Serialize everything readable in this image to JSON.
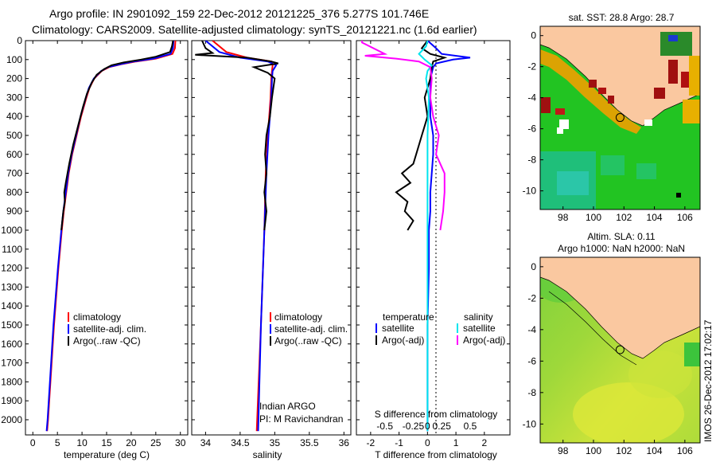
{
  "header": {
    "line1": "Argo profile: IN 2901092_159 22-Dec-2012 20121225_376 5.277S 101.746E",
    "line2": "Climatology: CARS2009. Satellite-adjusted climatology: synTS_20121221.nc (1.6d earlier)"
  },
  "chart_data": [
    {
      "type": "line",
      "name": "temperature",
      "xlabel": "temperature (deg C)",
      "xlim": [
        -1.5,
        31.5
      ],
      "xticks": [
        0,
        5,
        10,
        15,
        20,
        25,
        30
      ],
      "ylim": [
        0,
        2080
      ],
      "yticks": [
        0,
        100,
        200,
        300,
        400,
        500,
        600,
        700,
        800,
        900,
        1000,
        1100,
        1200,
        1300,
        1400,
        1500,
        1600,
        1700,
        1800,
        1900,
        2000
      ],
      "legend": [
        "climatology",
        "satellite-adj. clim.",
        "Argo(..raw -QC)"
      ],
      "series": [
        {
          "name": "climatology",
          "color": "#ff0000",
          "depth": [
            0,
            40,
            70,
            95,
            110,
            125,
            140,
            160,
            200,
            250,
            300,
            400,
            500,
            600,
            700,
            800,
            900,
            1000,
            1200,
            1500,
            2000,
            2060
          ],
          "values": [
            29,
            28.9,
            28.4,
            25,
            21,
            18,
            15.5,
            14,
            12.5,
            11.5,
            10.9,
            9.8,
            8.9,
            8,
            7.3,
            6.8,
            6.3,
            5.9,
            5.2,
            4.3,
            3.1,
            2.9
          ]
        },
        {
          "name": "satellite-adj. clim.",
          "color": "#0000ff",
          "depth": [
            0,
            40,
            70,
            95,
            110,
            125,
            140,
            160,
            200,
            250,
            300,
            400,
            500,
            600,
            700,
            800,
            900,
            1000,
            1200,
            1500,
            2000,
            2060
          ],
          "values": [
            28.6,
            28.5,
            28,
            24.5,
            20.5,
            17.8,
            15.3,
            13.9,
            12.4,
            11.4,
            10.8,
            9.7,
            8.8,
            7.9,
            7.2,
            6.7,
            6.2,
            5.8,
            5.1,
            4.2,
            3,
            2.8
          ]
        },
        {
          "name": "Argo(..raw -QC)",
          "color": "#000000",
          "depth": [
            0,
            30,
            60,
            85,
            100,
            115,
            130,
            150,
            180,
            220,
            280,
            350,
            450,
            550,
            650,
            750,
            800,
            850,
            900,
            1000
          ],
          "values": [
            28.5,
            28.3,
            27.9,
            25,
            22,
            18.5,
            16,
            14.5,
            13,
            12,
            11,
            10.2,
            9.2,
            8.2,
            7.4,
            6.7,
            6.4,
            6.5,
            6.2,
            5.8
          ]
        }
      ]
    },
    {
      "type": "line",
      "name": "salinity",
      "xlabel": "salinity",
      "xlim": [
        33.8,
        36.1
      ],
      "xticks": [
        34,
        34.5,
        35,
        35.5,
        36
      ],
      "legend": [
        "climatology",
        "satellite-adj. clim.",
        "Argo(..raw -QC)"
      ],
      "annotation": [
        "Indian ARGO",
        "PI: M Ravichandran"
      ],
      "series": [
        {
          "name": "climatology",
          "color": "#ff0000",
          "depth": [
            0,
            60,
            90,
            110,
            130,
            160,
            200,
            300,
            500,
            700,
            1000,
            1500,
            2060
          ],
          "values": [
            34.1,
            34.3,
            34.6,
            34.95,
            34.97,
            34.96,
            34.95,
            34.94,
            34.9,
            34.87,
            34.85,
            34.8,
            34.74
          ]
        },
        {
          "name": "satellite-adj. clim.",
          "color": "#0000ff",
          "depth": [
            0,
            60,
            90,
            110,
            130,
            160,
            200,
            300,
            500,
            700,
            1000,
            1500,
            2060
          ],
          "values": [
            34,
            34.2,
            34.5,
            34.9,
            35.02,
            34.97,
            34.96,
            34.95,
            34.91,
            34.88,
            34.85,
            34.8,
            34.76
          ]
        },
        {
          "name": "Argo(..raw -QC)",
          "color": "#000000",
          "depth": [
            0,
            40,
            65,
            75,
            90,
            110,
            120,
            140,
            170,
            200,
            300,
            400,
            500,
            600,
            700,
            800,
            900,
            1000
          ],
          "values": [
            33.95,
            34,
            34.1,
            33.85,
            34.6,
            34.95,
            35.05,
            34.7,
            34.9,
            35,
            34.96,
            34.93,
            34.88,
            34.86,
            34.88,
            34.85,
            34.88,
            34.85
          ]
        }
      ]
    },
    {
      "type": "line",
      "name": "difference",
      "xlabel": "T difference from climatology",
      "xlabel_top": "S difference from climatology",
      "xlim": [
        -2.5,
        2.9
      ],
      "xticks": [
        -2,
        -1,
        0,
        1,
        2
      ],
      "xticks_top": [
        "-0.5",
        "-0.25",
        "0",
        "0.25",
        "0.5"
      ],
      "legend_left": [
        "temperature",
        "satellite",
        "Argo(-adj)"
      ],
      "legend_right": [
        "salinity",
        "satellite",
        "Argo(-adj)"
      ],
      "series": [
        {
          "name": "T satellite",
          "color": "#0000ff",
          "depth": [
            0,
            40,
            70,
            90,
            100,
            120,
            140,
            200,
            300,
            400,
            500,
            600,
            700,
            800,
            900,
            1000,
            1200,
            1500,
            2000,
            2060
          ],
          "values": [
            0,
            0.3,
            0.5,
            1.5,
            0.9,
            0.3,
            0.2,
            0.1,
            0.1,
            0.1,
            0.2,
            0.2,
            0.15,
            0.1,
            0.1,
            0.05,
            0.05,
            0,
            0,
            0
          ]
        },
        {
          "name": "T Argo(-adj)",
          "color": "#000000",
          "depth": [
            0,
            40,
            70,
            90,
            110,
            140,
            200,
            300,
            400,
            500,
            600,
            650,
            700,
            750,
            800,
            850,
            900,
            950,
            1000
          ],
          "values": [
            0,
            -0.2,
            0.1,
            0.6,
            0.2,
            0.15,
            0.1,
            -0.1,
            0,
            -0.2,
            -0.4,
            -0.5,
            -0.9,
            -0.6,
            -1.1,
            -0.7,
            -0.8,
            -0.5,
            -0.7
          ]
        },
        {
          "name": "S satellite",
          "color": "#00e5ee",
          "depth": [
            0,
            30,
            70,
            100,
            130,
            160,
            200,
            300,
            500,
            1000,
            1500,
            2060
          ],
          "values": [
            0,
            -0.05,
            -0.3,
            -0.1,
            0.15,
            0,
            -0.05,
            0.05,
            0,
            0,
            0,
            0
          ]
        },
        {
          "name": "S Argo(-adj)",
          "color": "#ff00ff",
          "depth": [
            0,
            10,
            70,
            80,
            95,
            110,
            140,
            200,
            300,
            400,
            500,
            600,
            700,
            800,
            900,
            1000
          ],
          "values": [
            -2.3,
            -2.3,
            -1.5,
            -2.2,
            -1.1,
            -0.3,
            0.1,
            0.15,
            0.1,
            0.2,
            0.4,
            0.3,
            0.6,
            0.6,
            0.55,
            0.45
          ]
        }
      ]
    },
    {
      "type": "heatmap",
      "name": "sst_map",
      "title": "sat. SST: 28.8  Argo: 28.7",
      "xticks": [
        98,
        100,
        102,
        104,
        106
      ],
      "yticks": [
        0,
        -2,
        -4,
        -6,
        -8,
        -10
      ],
      "xlim": [
        96.5,
        107
      ],
      "ylim": [
        -11.2,
        0.6
      ]
    },
    {
      "type": "heatmap",
      "name": "sla_map",
      "title_line1": "Altim. SLA: 0.11",
      "title_line2": "Argo h1000: NaN  h2000: NaN",
      "xticks": [
        98,
        100,
        102,
        104,
        106
      ],
      "yticks": [
        0,
        -2,
        -4,
        -6,
        -8,
        -10
      ],
      "xlim": [
        96.5,
        107
      ],
      "ylim": [
        -11.2,
        0.6
      ]
    }
  ],
  "float_position": {
    "lon": 101.746,
    "lat": -5.277
  },
  "credit": "IMOS 26-Dec-2012 17:02:17"
}
